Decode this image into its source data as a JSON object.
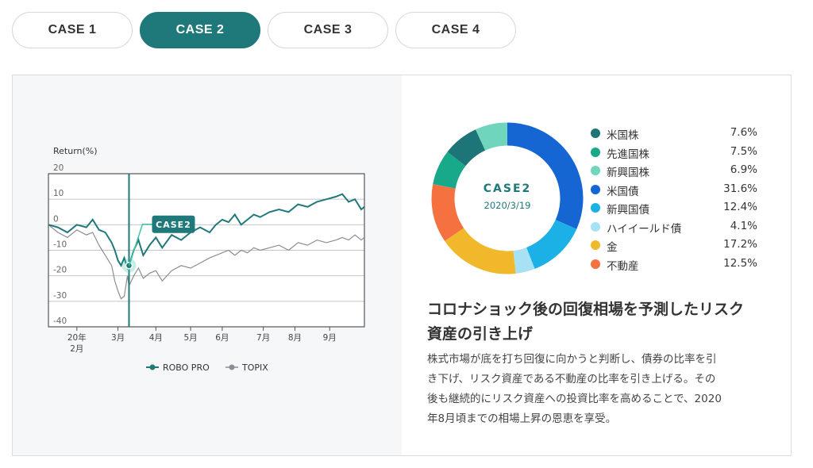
{
  "tabs": [
    "CASE 1",
    "CASE 2",
    "CASE 3",
    "CASE 4"
  ],
  "active_tab": 1,
  "chart_data": [
    {
      "type": "line",
      "ylabel": "Return(%)",
      "ylim": [
        -40,
        20
      ],
      "yticks": [
        20,
        10,
        0,
        -10,
        -20,
        -30,
        -40
      ],
      "xlim": [
        0,
        10
      ],
      "xticks": [
        {
          "x": 0.9,
          "label": "20年",
          "label2": "2月"
        },
        {
          "x": 2.2,
          "label": "3月"
        },
        {
          "x": 3.4,
          "label": "4月"
        },
        {
          "x": 4.5,
          "label": "5月"
        },
        {
          "x": 5.5,
          "label": "6月"
        },
        {
          "x": 6.8,
          "label": "7月"
        },
        {
          "x": 7.8,
          "label": "8月"
        },
        {
          "x": 8.9,
          "label": "9月"
        }
      ],
      "marker": {
        "x": 2.55,
        "label": "CASE2"
      },
      "series": [
        {
          "name": "ROBO PRO",
          "color": "#1f787a",
          "x": [
            0,
            0.3,
            0.6,
            0.9,
            1.2,
            1.4,
            1.6,
            1.8,
            1.9,
            2.0,
            2.1,
            2.2,
            2.3,
            2.4,
            2.5,
            2.55,
            2.7,
            2.85,
            3.0,
            3.2,
            3.4,
            3.6,
            3.9,
            4.2,
            4.5,
            4.8,
            5.1,
            5.3,
            5.5,
            5.7,
            5.9,
            6.1,
            6.3,
            6.5,
            6.7,
            7.0,
            7.3,
            7.6,
            7.9,
            8.2,
            8.5,
            8.8,
            9.1,
            9.3,
            9.5,
            9.7,
            9.9,
            10
          ],
          "y": [
            0,
            -1,
            -3,
            0,
            -1,
            2,
            -2,
            -3,
            -5,
            -7,
            -10,
            -14,
            -16,
            -13,
            -17,
            -16,
            -10,
            -6,
            -12,
            -8,
            -5,
            -9,
            -4,
            -6,
            -3,
            -1,
            -3,
            0,
            2,
            1,
            4,
            0,
            2,
            4,
            3,
            5,
            6,
            5,
            8,
            7,
            9,
            10,
            11,
            12,
            9,
            10,
            6,
            7
          ]
        },
        {
          "name": "TOPIX",
          "color": "#8c8c94",
          "x": [
            0,
            0.3,
            0.6,
            0.9,
            1.2,
            1.4,
            1.6,
            1.8,
            1.9,
            2.0,
            2.1,
            2.2,
            2.3,
            2.4,
            2.5,
            2.55,
            2.7,
            2.85,
            3.0,
            3.2,
            3.4,
            3.6,
            3.9,
            4.2,
            4.5,
            4.8,
            5.1,
            5.3,
            5.5,
            5.7,
            5.9,
            6.1,
            6.3,
            6.5,
            6.7,
            7.0,
            7.3,
            7.6,
            7.9,
            8.2,
            8.5,
            8.8,
            9.1,
            9.3,
            9.5,
            9.7,
            9.9,
            10
          ],
          "y": [
            0,
            -3,
            -5,
            -2,
            -4,
            -3,
            -8,
            -12,
            -14,
            -16,
            -22,
            -26,
            -29,
            -28,
            -20,
            -24,
            -20,
            -17,
            -21,
            -19,
            -18,
            -22,
            -18,
            -16,
            -17,
            -15,
            -13,
            -12,
            -11,
            -10,
            -12,
            -10,
            -11,
            -9,
            -10,
            -9,
            -8,
            -10,
            -7,
            -8,
            -6,
            -7,
            -6,
            -5,
            -6,
            -4,
            -6,
            -5
          ]
        }
      ],
      "legend": [
        "ROBO PRO",
        "TOPIX"
      ]
    },
    {
      "type": "pie",
      "center_title": "CASE2",
      "center_date": "2020/3/19",
      "slices": [
        {
          "name": "米国株",
          "value": 7.6,
          "label": "7.6%",
          "color": "#1d7577"
        },
        {
          "name": "先進国株",
          "value": 7.5,
          "label": "7.5%",
          "color": "#18a98a"
        },
        {
          "name": "新興国株",
          "value": 6.9,
          "label": "6.9%",
          "color": "#6fd5bd"
        },
        {
          "name": "米国債",
          "value": 31.6,
          "label": "31.6%",
          "color": "#1565d3"
        },
        {
          "name": "新興国債",
          "value": 12.4,
          "label": "12.4%",
          "color": "#1bb0e6"
        },
        {
          "name": "ハイイールド債",
          "value": 4.1,
          "label": "4.1%",
          "color": "#a7e1f4"
        },
        {
          "name": "金",
          "value": 17.2,
          "label": "17.2%",
          "color": "#f0b82a"
        },
        {
          "name": "不動産",
          "value": 12.5,
          "label": "12.5%",
          "color": "#f57240"
        }
      ],
      "draw_order": [
        3,
        4,
        5,
        6,
        7,
        1,
        0,
        2
      ]
    }
  ],
  "headline_line1": "コロナショック後の回復相場を予測したリスク",
  "headline_line2": "資産の引き上げ",
  "body_lines": [
    "株式市場が底を打ち回復に向かうと判断し、債券の比率を引",
    "き下げ、リスク資産である不動産の比率を引き上げる。その",
    "後も継続的にリスク資産への投資比率を高めることで、2020",
    "年8月頃までの相場上昇の恩恵を享受。"
  ]
}
